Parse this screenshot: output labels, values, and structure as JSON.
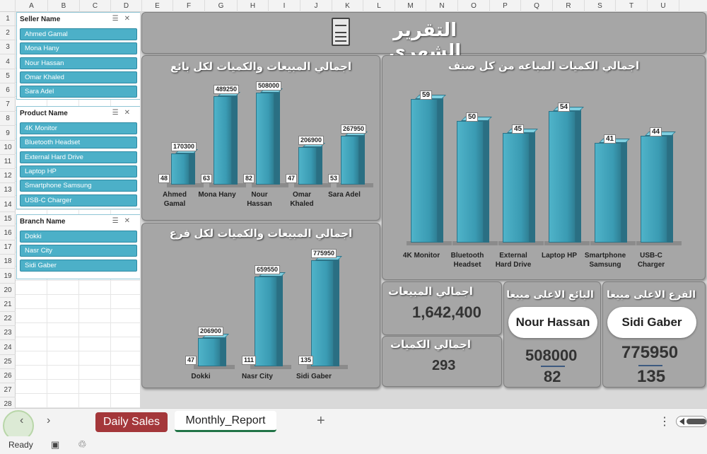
{
  "columns": [
    "A",
    "B",
    "C",
    "D",
    "E",
    "F",
    "G",
    "H",
    "I",
    "J",
    "K",
    "L",
    "M",
    "N",
    "O",
    "P",
    "Q",
    "R",
    "S",
    "T",
    "U"
  ],
  "rows": [
    "1",
    "2",
    "3",
    "4",
    "5",
    "6",
    "7",
    "8",
    "9",
    "10",
    "11",
    "12",
    "13",
    "14",
    "15",
    "16",
    "17",
    "18",
    "19",
    "20",
    "21",
    "22",
    "23",
    "24",
    "25",
    "26",
    "27",
    "28"
  ],
  "slicers": [
    {
      "title": "Seller Name",
      "items": [
        "Ahmed Gamal",
        "Mona Hany",
        "Nour Hassan",
        "Omar Khaled",
        "Sara Adel"
      ]
    },
    {
      "title": "Product Name",
      "items": [
        "4K Monitor",
        "Bluetooth Headset",
        "External Hard Drive",
        "Laptop HP",
        "Smartphone Samsung",
        "USB-C Charger"
      ]
    },
    {
      "title": "Branch Name",
      "items": [
        "Dokki",
        "Nasr City",
        "Sidi Gaber"
      ]
    }
  ],
  "dashboard": {
    "title": "التقرير الشهري",
    "title_icon": "document-icon",
    "kpis": {
      "total_sales_label": "اجمالي المبيعات",
      "total_sales_value": "1,642,400",
      "total_qty_label": "اجمالي الكميات",
      "total_qty_value": "293",
      "top_seller_label": "البائع الاعلى مبيعا",
      "top_seller_name": "Nour Hassan",
      "top_seller_sales": "508000",
      "top_seller_qty": "82",
      "top_branch_label": "الفرع الاعلى مبيعا",
      "top_branch_name": "Sidi Gaber",
      "top_branch_sales": "775950",
      "top_branch_qty": "135"
    },
    "colors": {
      "bar": "#4cb0c8",
      "panel": "#a6a6a6",
      "background": "#d9d9d9",
      "accent_tab": "#a4373a",
      "active_tab": "#217346"
    }
  },
  "chart_data": [
    {
      "type": "bar",
      "title": "اجمالي المبيعات والكميات لكل بائع",
      "categories": [
        "Ahmed Gamal",
        "Mona Hany",
        "Nour Hassan",
        "Omar Khaled",
        "Sara Adel"
      ],
      "category_lines": [
        [
          "Ahmed",
          "Gamal"
        ],
        [
          "Mona Hany"
        ],
        [
          "Nour",
          "Hassan"
        ],
        [
          "Omar",
          "Khaled"
        ],
        [
          "Sara Adel"
        ]
      ],
      "series": [
        {
          "values": [
            48,
            63,
            82,
            47,
            53
          ]
        },
        {
          "values": [
            170300,
            489250,
            508000,
            206900,
            267950
          ]
        }
      ]
    },
    {
      "type": "bar",
      "title": "اجمالي المبيعات والكميات لكل فرع",
      "categories": [
        "Dokki",
        "Nasr City",
        "Sidi Gaber"
      ],
      "category_lines": [
        [
          "Dokki"
        ],
        [
          "Nasr City"
        ],
        [
          "Sidi Gaber"
        ]
      ],
      "series": [
        {
          "values": [
            47,
            111,
            135
          ]
        },
        {
          "values": [
            206900,
            659550,
            775950
          ]
        }
      ]
    },
    {
      "type": "bar",
      "title": "اجمالي الكميات المباعه من كل صنف",
      "categories": [
        "4K Monitor",
        "Bluetooth Headset",
        "External Hard Drive",
        "Laptop HP",
        "Smartphone Samsung",
        "USB-C Charger"
      ],
      "category_lines": [
        [
          "4K Monitor"
        ],
        [
          "Bluetooth",
          "Headset"
        ],
        [
          "External",
          "Hard Drive"
        ],
        [
          "Laptop HP"
        ],
        [
          "Smartphone",
          "Samsung"
        ],
        [
          "USB-C",
          "Charger"
        ]
      ],
      "series": [
        {
          "values": [
            59,
            50,
            45,
            54,
            41,
            44
          ]
        }
      ]
    }
  ],
  "sheet_tabs": [
    "Daily Sales",
    "Monthly_Report"
  ],
  "active_tab": "Monthly_Report",
  "status": {
    "ready": "Ready"
  }
}
